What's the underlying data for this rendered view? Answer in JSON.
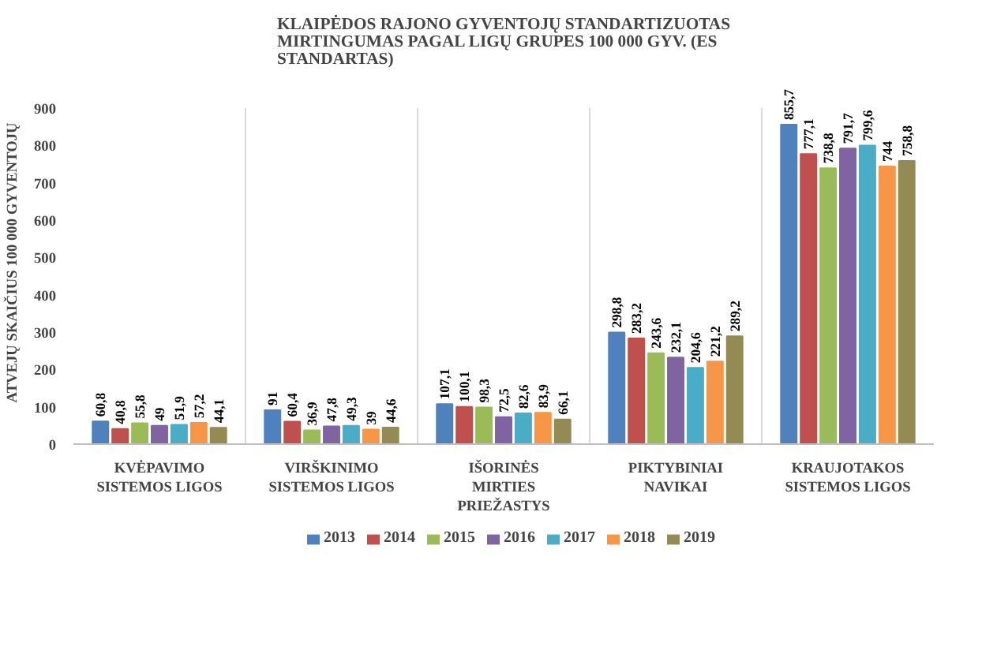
{
  "chart_data": {
    "type": "bar",
    "title": "KLAIPĖDOS RAJONO GYVENTOJŲ STANDARTIZUOTAS MIRTINGUMAS PAGAL LIGŲ GRUPES 100 000 GYV. (ES STANDARTAS)",
    "ylabel": "ATVEJŲ SKAIČIUS 100 000 GYVENTOJŲ",
    "categories": [
      "KVĖPAVIMO SISTEMOS LIGOS",
      "VIRŠKINIMO SISTEMOS LIGOS",
      "IŠORINĖS MIRTIES PRIEŽASTYS",
      "PIKTYBINIAI NAVIKAI",
      "KRAUJOTAKOS SISTEMOS LIGOS"
    ],
    "series": [
      {
        "name": "2013",
        "color": "#4f81bd",
        "values": [
          60.8,
          91,
          107.1,
          298.8,
          855.7
        ],
        "value_labels": [
          "60,8",
          "91",
          "107,1",
          "298,8",
          "855,7"
        ]
      },
      {
        "name": "2014",
        "color": "#c0504d",
        "values": [
          40.8,
          60.4,
          100.1,
          283.2,
          777.1
        ],
        "value_labels": [
          "40,8",
          "60,4",
          "100,1",
          "283,2",
          "777,1"
        ]
      },
      {
        "name": "2015",
        "color": "#9bbb59",
        "values": [
          55.8,
          36.9,
          98.3,
          243.6,
          738.8
        ],
        "value_labels": [
          "55,8",
          "36,9",
          "98,3",
          "243,6",
          "738,8"
        ]
      },
      {
        "name": "2016",
        "color": "#8064a2",
        "values": [
          49,
          47.8,
          72.5,
          232.1,
          791.7
        ],
        "value_labels": [
          "49",
          "47,8",
          "72,5",
          "232,1",
          "791,7"
        ]
      },
      {
        "name": "2017",
        "color": "#4bacc6",
        "values": [
          51.9,
          49.3,
          82.6,
          204.6,
          799.6
        ],
        "value_labels": [
          "51,9",
          "49,3",
          "82,6",
          "204,6",
          "799,6"
        ]
      },
      {
        "name": "2018",
        "color": "#f79646",
        "values": [
          57.2,
          39,
          83.9,
          221.2,
          744
        ],
        "value_labels": [
          "57,2",
          "39",
          "83,9",
          "221,2",
          "744"
        ]
      },
      {
        "name": "2019",
        "color": "#948a54",
        "values": [
          44.1,
          44.6,
          66.1,
          289.2,
          758.8
        ],
        "value_labels": [
          "44,1",
          "44,6",
          "66,1",
          "289,2",
          "758,8"
        ]
      }
    ],
    "ylim": [
      0,
      900
    ],
    "yticks": [
      0,
      100,
      200,
      300,
      400,
      500,
      600,
      700,
      800,
      900
    ],
    "data_labels": true,
    "grid": "x",
    "legend": "bottom"
  }
}
